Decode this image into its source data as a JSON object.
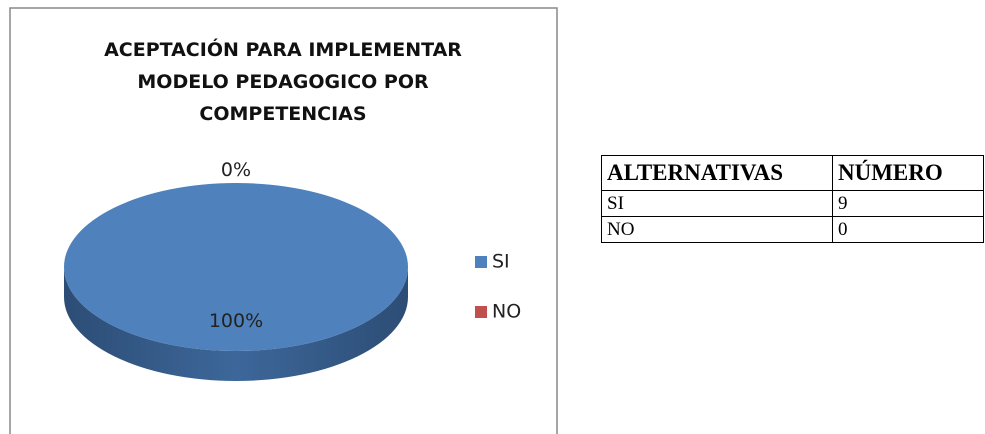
{
  "chart_data": {
    "type": "pie",
    "title": "ACEPTACIÓN PARA IMPLEMENTAR MODELO PEDAGOGICO POR COMPETENCIAS",
    "categories": [
      "SI",
      "NO"
    ],
    "values": [
      100,
      0
    ],
    "value_labels": [
      "100%",
      "0%"
    ],
    "colors": [
      "#4f81bd",
      "#c0504d"
    ],
    "legend": "right"
  },
  "table": {
    "header": [
      "ALTERNATIVAS",
      "NÚMERO"
    ],
    "rows": [
      [
        "SI",
        9
      ],
      [
        "NO",
        0
      ]
    ]
  }
}
